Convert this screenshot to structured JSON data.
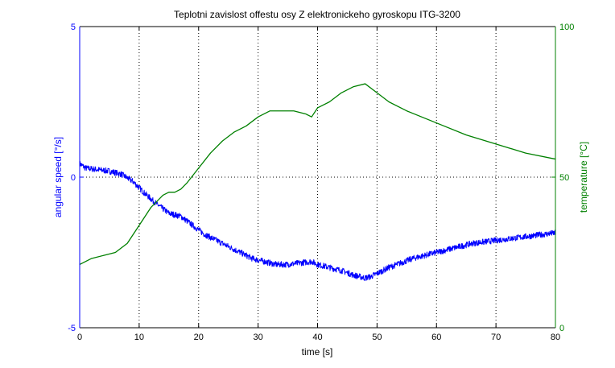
{
  "chart_data": {
    "type": "line",
    "title": "Teplotni zavislost offestu osy Z elektronickeho gyroskopu ITG-3200",
    "xlabel": "time [s]",
    "ylabel_left": "angular speed [°/s]",
    "ylabel_right": "temperature [°C]",
    "xlim": [
      0,
      80
    ],
    "ylim_left": [
      -5,
      5
    ],
    "ylim_right": [
      0,
      100
    ],
    "grid": true,
    "x_ticks": [
      "0",
      "10",
      "20",
      "30",
      "40",
      "50",
      "60",
      "70",
      "80"
    ],
    "y_ticks_left": [
      "-5",
      "0",
      "5"
    ],
    "y_ticks_right": [
      "0",
      "50",
      "100"
    ],
    "colors": {
      "left": "#0000ff",
      "right": "#008000",
      "axes": "#000000",
      "grid": "#000000"
    },
    "series": [
      {
        "name": "angular speed",
        "axis": "left",
        "color": "#0000ff",
        "noise": 0.1,
        "x": [
          0,
          1,
          3,
          5,
          7,
          9,
          11,
          13,
          15,
          17,
          19,
          21,
          23,
          25,
          27,
          29,
          31,
          33,
          35,
          37,
          39,
          40,
          42,
          44,
          46,
          48,
          49,
          50,
          52,
          54,
          56,
          58,
          60,
          62,
          64,
          66,
          68,
          70,
          72,
          74,
          76,
          78,
          80
        ],
        "y": [
          0.45,
          0.3,
          0.25,
          0.2,
          0.1,
          -0.15,
          -0.55,
          -0.9,
          -1.2,
          -1.3,
          -1.6,
          -1.9,
          -2.1,
          -2.3,
          -2.5,
          -2.7,
          -2.8,
          -2.9,
          -2.9,
          -2.85,
          -2.8,
          -2.9,
          -3.0,
          -3.1,
          -3.25,
          -3.35,
          -3.3,
          -3.2,
          -3.0,
          -2.85,
          -2.7,
          -2.6,
          -2.5,
          -2.4,
          -2.3,
          -2.2,
          -2.15,
          -2.1,
          -2.05,
          -2.0,
          -1.95,
          -1.9,
          -1.85
        ]
      },
      {
        "name": "temperature",
        "axis": "right",
        "color": "#008000",
        "noise": 0,
        "x": [
          0,
          2,
          4,
          6,
          8,
          10,
          12,
          13,
          14,
          15,
          16,
          17,
          18,
          20,
          22,
          24,
          26,
          28,
          30,
          32,
          34,
          36,
          38,
          39,
          40,
          42,
          44,
          46,
          48,
          50,
          52,
          55,
          60,
          65,
          70,
          75,
          80
        ],
        "y": [
          21,
          23,
          24,
          25,
          28,
          34,
          40,
          42,
          44,
          45,
          45,
          46,
          48,
          53,
          58,
          62,
          65,
          67,
          70,
          72,
          72,
          72,
          71,
          70,
          73,
          75,
          78,
          80,
          81,
          78,
          75,
          72,
          68,
          64,
          61,
          58,
          56
        ]
      }
    ]
  }
}
